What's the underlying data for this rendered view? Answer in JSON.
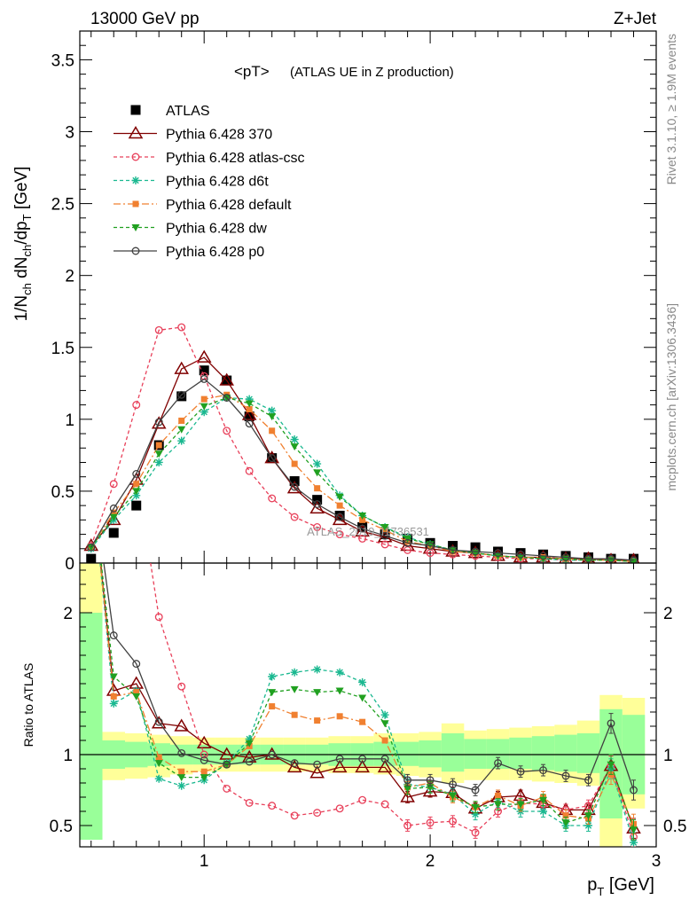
{
  "header": {
    "left": "13000 GeV pp",
    "right": "Z+Jet"
  },
  "side_labels": {
    "rivet": "Rivet 3.1.10, ≥ 1.9M events",
    "mcplots": "mcplots.cern.ch [arXiv:1306.3436]"
  },
  "watermark": "ATLAS_2019_I1736531",
  "chart_data": [
    {
      "type": "line",
      "title": "<pT> (ATLAS UE in Z production)",
      "title_main": "<pT>",
      "title_sub": "(ATLAS UE in Z production)",
      "ylabel": "1/N_ch dN_ch/dp_T [GeV]",
      "xlabel": "p_T [GeV]",
      "xlim": [
        0.45,
        3.0
      ],
      "ylim": [
        0,
        3.7
      ],
      "x_ticks": [
        1,
        2,
        3
      ],
      "x_tick_labels": [
        "1",
        "2",
        "3"
      ],
      "y_ticks": [
        0,
        0.5,
        1,
        1.5,
        2,
        2.5,
        3,
        3.5
      ],
      "y_tick_labels": [
        "0",
        "0.5",
        "1",
        "1.5",
        "2",
        "2.5",
        "3",
        "3.5"
      ],
      "legend_position": "top-left",
      "x": [
        0.5,
        0.6,
        0.7,
        0.8,
        0.9,
        1.0,
        1.1,
        1.2,
        1.3,
        1.4,
        1.5,
        1.6,
        1.7,
        1.8,
        1.9,
        2.0,
        2.1,
        2.2,
        2.3,
        2.4,
        2.5,
        2.6,
        2.7,
        2.8,
        2.9
      ],
      "series": [
        {
          "name": "ATLAS",
          "color": "#000000",
          "marker": "square-filled",
          "dash": "none",
          "values": [
            0.03,
            0.21,
            0.4,
            0.82,
            1.16,
            1.34,
            1.27,
            1.02,
            0.73,
            0.57,
            0.44,
            0.33,
            0.25,
            0.2,
            0.17,
            0.14,
            0.12,
            0.11,
            0.08,
            0.07,
            0.06,
            0.05,
            0.04,
            0.03,
            0.03
          ]
        },
        {
          "name": "Pythia 6.428 370",
          "color": "#800000",
          "marker": "triangle-open",
          "dash": "none",
          "values": [
            0.12,
            0.3,
            0.58,
            0.97,
            1.35,
            1.43,
            1.27,
            1.03,
            0.73,
            0.52,
            0.38,
            0.3,
            0.22,
            0.18,
            0.12,
            0.1,
            0.08,
            0.07,
            0.05,
            0.04,
            0.04,
            0.03,
            0.03,
            0.02,
            0.02
          ]
        },
        {
          "name": "Pythia 6.428 atlas-csc",
          "color": "#e8405a",
          "marker": "circle-open",
          "dash": "4,3",
          "values": [
            0.12,
            0.55,
            1.1,
            1.62,
            1.64,
            1.3,
            0.92,
            0.64,
            0.45,
            0.32,
            0.25,
            0.2,
            0.17,
            0.13,
            0.09,
            0.07,
            0.06,
            0.05,
            0.04,
            0.03,
            0.03,
            0.02,
            0.02,
            0.02,
            0.01
          ]
        },
        {
          "name": "Pythia 6.428 d6t",
          "color": "#1ab890",
          "marker": "star",
          "dash": "4,3",
          "values": [
            0.1,
            0.3,
            0.47,
            0.7,
            0.85,
            1.05,
            1.15,
            1.14,
            1.06,
            0.86,
            0.69,
            0.47,
            0.33,
            0.25,
            0.18,
            0.13,
            0.09,
            0.07,
            0.05,
            0.04,
            0.03,
            0.02,
            0.02,
            0.02,
            0.01
          ]
        },
        {
          "name": "Pythia 6.428 default",
          "color": "#f08030",
          "marker": "square-filled-small",
          "dash": "8,3,2,3",
          "values": [
            0.11,
            0.35,
            0.55,
            0.82,
            0.99,
            1.14,
            1.17,
            1.07,
            0.92,
            0.69,
            0.52,
            0.4,
            0.3,
            0.23,
            0.15,
            0.12,
            0.08,
            0.07,
            0.05,
            0.04,
            0.04,
            0.03,
            0.02,
            0.02,
            0.01
          ]
        },
        {
          "name": "Pythia 6.428 dw",
          "color": "#20a020",
          "marker": "triangle-down-filled",
          "dash": "4,3",
          "values": [
            0.11,
            0.32,
            0.5,
            0.76,
            0.93,
            1.09,
            1.15,
            1.11,
            1.02,
            0.81,
            0.63,
            0.46,
            0.33,
            0.25,
            0.17,
            0.13,
            0.09,
            0.07,
            0.05,
            0.04,
            0.03,
            0.03,
            0.02,
            0.02,
            0.01
          ]
        },
        {
          "name": "Pythia 6.428 p0",
          "color": "#404040",
          "marker": "circle-open",
          "dash": "none",
          "values": [
            0.11,
            0.38,
            0.62,
            0.98,
            1.17,
            1.28,
            1.15,
            0.97,
            0.73,
            0.53,
            0.41,
            0.32,
            0.24,
            0.19,
            0.14,
            0.12,
            0.09,
            0.08,
            0.07,
            0.06,
            0.05,
            0.04,
            0.03,
            0.03,
            0.02
          ]
        }
      ]
    },
    {
      "type": "line",
      "ylabel": "Ratio to ATLAS",
      "xlabel": "p_T [GeV]",
      "xlim": [
        0.45,
        3.0
      ],
      "ylim": [
        0.35,
        2.35
      ],
      "y_ticks": [
        0.5,
        1,
        2
      ],
      "y_tick_labels": [
        "0.5",
        "1",
        "2"
      ],
      "reference_line": 1,
      "x": [
        0.5,
        0.6,
        0.7,
        0.8,
        0.9,
        1.0,
        1.1,
        1.2,
        1.3,
        1.4,
        1.5,
        1.6,
        1.7,
        1.8,
        1.9,
        2.0,
        2.1,
        2.2,
        2.3,
        2.4,
        2.5,
        2.6,
        2.7,
        2.8,
        2.9
      ],
      "bands": {
        "yellow": [
          [
            0.4,
            2.4
          ],
          [
            0.82,
            1.16
          ],
          [
            0.83,
            1.15
          ],
          [
            0.84,
            1.14
          ],
          [
            0.86,
            1.13
          ],
          [
            0.88,
            1.12
          ],
          [
            0.88,
            1.12
          ],
          [
            0.88,
            1.12
          ],
          [
            0.88,
            1.12
          ],
          [
            0.88,
            1.12
          ],
          [
            0.88,
            1.12
          ],
          [
            0.87,
            1.13
          ],
          [
            0.87,
            1.13
          ],
          [
            0.86,
            1.15
          ],
          [
            0.85,
            1.15
          ],
          [
            0.84,
            1.16
          ],
          [
            0.8,
            1.22
          ],
          [
            0.82,
            1.17
          ],
          [
            0.82,
            1.18
          ],
          [
            0.82,
            1.19
          ],
          [
            0.81,
            1.2
          ],
          [
            0.8,
            1.21
          ],
          [
            0.78,
            1.24
          ],
          [
            0.35,
            1.42
          ],
          [
            0.62,
            1.4
          ]
        ],
        "green": [
          [
            0.4,
            2.0
          ],
          [
            0.9,
            1.1
          ],
          [
            0.91,
            1.09
          ],
          [
            0.92,
            1.08
          ],
          [
            0.93,
            1.07
          ],
          [
            0.93,
            1.07
          ],
          [
            0.93,
            1.07
          ],
          [
            0.93,
            1.07
          ],
          [
            0.93,
            1.07
          ],
          [
            0.93,
            1.07
          ],
          [
            0.93,
            1.07
          ],
          [
            0.92,
            1.08
          ],
          [
            0.92,
            1.08
          ],
          [
            0.92,
            1.09
          ],
          [
            0.92,
            1.09
          ],
          [
            0.91,
            1.1
          ],
          [
            0.88,
            1.15
          ],
          [
            0.9,
            1.11
          ],
          [
            0.9,
            1.11
          ],
          [
            0.9,
            1.12
          ],
          [
            0.89,
            1.13
          ],
          [
            0.88,
            1.14
          ],
          [
            0.87,
            1.15
          ],
          [
            0.55,
            1.32
          ],
          [
            0.72,
            1.28
          ]
        ]
      },
      "series": [
        {
          "name": "Pythia 6.428 370",
          "values": [
            null,
            1.45,
            1.5,
            1.22,
            1.2,
            1.08,
            1.0,
            0.98,
            1.0,
            0.91,
            0.87,
            0.91,
            0.91,
            0.91,
            0.7,
            0.74,
            0.73,
            0.62,
            0.7,
            0.71,
            0.66,
            0.61,
            0.61,
            0.92,
            0.48
          ]
        },
        {
          "name": "Pythia 6.428 atlas-csc",
          "values": [
            null,
            null,
            null,
            1.97,
            1.48,
            1.0,
            0.76,
            0.66,
            0.64,
            0.57,
            0.59,
            0.62,
            0.68,
            0.65,
            0.5,
            0.52,
            0.53,
            0.45,
            0.6,
            0.66,
            0.65,
            0.61,
            0.64,
            0.92,
            0.42
          ]
        },
        {
          "name": "Pythia 6.428 d6t",
          "values": [
            null,
            1.36,
            1.45,
            0.83,
            0.78,
            0.82,
            0.94,
            1.11,
            1.55,
            1.58,
            1.6,
            1.58,
            1.51,
            1.28,
            0.79,
            0.77,
            0.72,
            0.58,
            0.67,
            0.6,
            0.6,
            0.5,
            0.5,
            0.9,
            0.38
          ]
        },
        {
          "name": "Pythia 6.428 default",
          "values": [
            null,
            1.41,
            1.44,
            0.98,
            0.88,
            0.88,
            0.93,
            1.06,
            1.34,
            1.28,
            1.24,
            1.27,
            1.23,
            1.1,
            0.77,
            0.8,
            0.7,
            0.63,
            0.71,
            0.64,
            0.7,
            0.57,
            0.55,
            0.86,
            0.51
          ]
        },
        {
          "name": "Pythia 6.428 dw",
          "values": [
            null,
            1.55,
            1.41,
            0.94,
            0.84,
            0.84,
            0.93,
            1.08,
            1.44,
            1.46,
            1.44,
            1.45,
            1.4,
            1.22,
            0.76,
            0.77,
            0.71,
            0.63,
            0.65,
            0.65,
            0.68,
            0.52,
            0.57,
            0.93,
            0.47
          ]
        },
        {
          "name": "Pythia 6.428 p0",
          "values": [
            null,
            1.84,
            1.64,
            1.23,
            1.01,
            0.96,
            0.93,
            0.95,
            1.0,
            0.94,
            0.93,
            0.97,
            0.97,
            0.97,
            0.82,
            0.82,
            0.79,
            0.75,
            0.94,
            0.88,
            0.89,
            0.85,
            0.82,
            1.22,
            0.75
          ]
        }
      ]
    }
  ]
}
